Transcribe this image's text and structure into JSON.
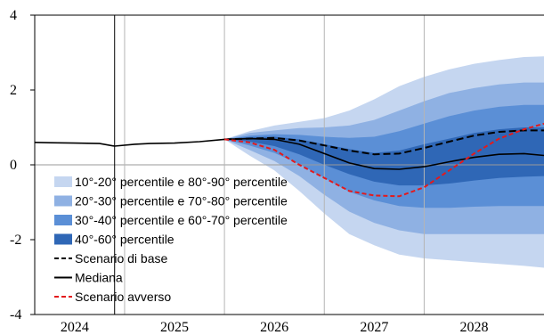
{
  "chart_data": {
    "type": "area",
    "title": "",
    "xlabel": "",
    "ylabel": "",
    "ylim": [
      -4,
      4
    ],
    "yticks": [
      "4",
      "2",
      "0",
      "-2",
      "-4"
    ],
    "xticks": [
      "2024",
      "2025",
      "2026",
      "2027",
      "2028"
    ],
    "x_range": [
      2023.6,
      2028.7
    ],
    "year_dividers": [
      2024.5,
      2025.5,
      2026.5,
      2027.5
    ],
    "vline_solid": 2024.4,
    "grid": false,
    "legend_placement": "bottom-left",
    "colors": {
      "band_10_20": "#c5d6f0",
      "band_20_30": "#8fb1e3",
      "band_30_40": "#5b8fd6",
      "band_40_60": "#2f67b6",
      "base": "#000000",
      "median": "#000000",
      "adverse": "#e31a1c"
    },
    "legend": [
      {
        "label": "10°-20° percentile e 80°-90° percentile",
        "kind": "box",
        "color": "#c5d6f0"
      },
      {
        "label": "20°-30° percentile e 70°-80° percentile",
        "kind": "box",
        "color": "#8fb1e3"
      },
      {
        "label": "30°-40° percentile e 60°-70° percentile",
        "kind": "box",
        "color": "#5b8fd6"
      },
      {
        "label": "40°-60° percentile",
        "kind": "box",
        "color": "#2f67b6"
      },
      {
        "label": "Scenario di base",
        "kind": "dash",
        "color": "#000000"
      },
      {
        "label": "Mediana",
        "kind": "solid",
        "color": "#000000"
      },
      {
        "label": "Scenario avverso",
        "kind": "dash",
        "color": "#e31a1c"
      }
    ],
    "history": {
      "x": [
        2023.6,
        2023.75,
        2024.0,
        2024.25,
        2024.4,
        2024.6,
        2024.75,
        2025.0,
        2025.25,
        2025.5
      ],
      "y": [
        0.6,
        0.59,
        0.58,
        0.57,
        0.5,
        0.55,
        0.57,
        0.58,
        0.62,
        0.68
      ]
    },
    "fan_x": [
      2025.5,
      2025.75,
      2026.0,
      2026.25,
      2026.5,
      2026.75,
      2027.0,
      2027.25,
      2027.5,
      2027.75,
      2028.0,
      2028.25,
      2028.5,
      2028.7
    ],
    "bands": [
      {
        "name": "10°-20° percentile e 80°-90° percentile",
        "lower": [
          0.68,
          0.25,
          -0.15,
          -0.7,
          -1.3,
          -1.85,
          -2.15,
          -2.4,
          -2.5,
          -2.55,
          -2.6,
          -2.65,
          -2.7,
          -2.75
        ],
        "upper": [
          0.68,
          0.9,
          1.05,
          1.15,
          1.25,
          1.45,
          1.75,
          2.1,
          2.35,
          2.55,
          2.7,
          2.8,
          2.88,
          2.9
        ]
      },
      {
        "name": "20°-30° percentile e 70°-80° percentile",
        "lower": [
          0.68,
          0.4,
          0.1,
          -0.3,
          -0.8,
          -1.25,
          -1.55,
          -1.75,
          -1.85,
          -1.85,
          -1.85,
          -1.85,
          -1.85,
          -1.85
        ],
        "upper": [
          0.68,
          0.85,
          0.92,
          0.98,
          1.0,
          1.05,
          1.2,
          1.45,
          1.7,
          1.92,
          2.05,
          2.15,
          2.2,
          2.2
        ]
      },
      {
        "name": "30°-40° percentile e 60°-70° percentile",
        "lower": [
          0.68,
          0.52,
          0.32,
          0.02,
          -0.35,
          -0.72,
          -0.95,
          -1.1,
          -1.15,
          -1.15,
          -1.12,
          -1.1,
          -1.1,
          -1.1
        ],
        "upper": [
          0.68,
          0.78,
          0.82,
          0.8,
          0.75,
          0.72,
          0.75,
          0.9,
          1.1,
          1.3,
          1.45,
          1.55,
          1.6,
          1.6
        ]
      },
      {
        "name": "40°-60° percentile",
        "lower": [
          0.68,
          0.62,
          0.5,
          0.28,
          0.0,
          -0.25,
          -0.45,
          -0.55,
          -0.55,
          -0.5,
          -0.42,
          -0.35,
          -0.32,
          -0.3
        ],
        "upper": [
          0.68,
          0.74,
          0.75,
          0.68,
          0.55,
          0.42,
          0.32,
          0.38,
          0.55,
          0.7,
          0.85,
          0.95,
          1.0,
          1.0
        ]
      }
    ],
    "series": [
      {
        "name": "Scenario di base",
        "style": "dash",
        "color": "#000000",
        "x": [
          2025.5,
          2025.75,
          2026.0,
          2026.25,
          2026.5,
          2026.75,
          2027.0,
          2027.25,
          2027.5,
          2027.75,
          2028.0,
          2028.25,
          2028.5,
          2028.7
        ],
        "y": [
          0.68,
          0.7,
          0.72,
          0.65,
          0.52,
          0.38,
          0.28,
          0.3,
          0.45,
          0.62,
          0.78,
          0.88,
          0.92,
          0.92
        ]
      },
      {
        "name": "Mediana",
        "style": "solid",
        "color": "#000000",
        "x": [
          2025.5,
          2025.75,
          2026.0,
          2026.25,
          2026.5,
          2026.75,
          2027.0,
          2027.25,
          2027.5,
          2027.75,
          2028.0,
          2028.25,
          2028.5,
          2028.7
        ],
        "y": [
          0.68,
          0.7,
          0.68,
          0.55,
          0.3,
          0.05,
          -0.1,
          -0.12,
          -0.05,
          0.08,
          0.2,
          0.28,
          0.3,
          0.25
        ]
      },
      {
        "name": "Scenario avverso",
        "style": "dash",
        "color": "#e31a1c",
        "x": [
          2025.5,
          2025.75,
          2026.0,
          2026.25,
          2026.5,
          2026.75,
          2027.0,
          2027.25,
          2027.5,
          2027.75,
          2028.0,
          2028.25,
          2028.5,
          2028.7
        ],
        "y": [
          0.68,
          0.6,
          0.4,
          0.0,
          -0.35,
          -0.7,
          -0.82,
          -0.84,
          -0.6,
          -0.15,
          0.3,
          0.7,
          0.95,
          1.1
        ]
      }
    ]
  }
}
